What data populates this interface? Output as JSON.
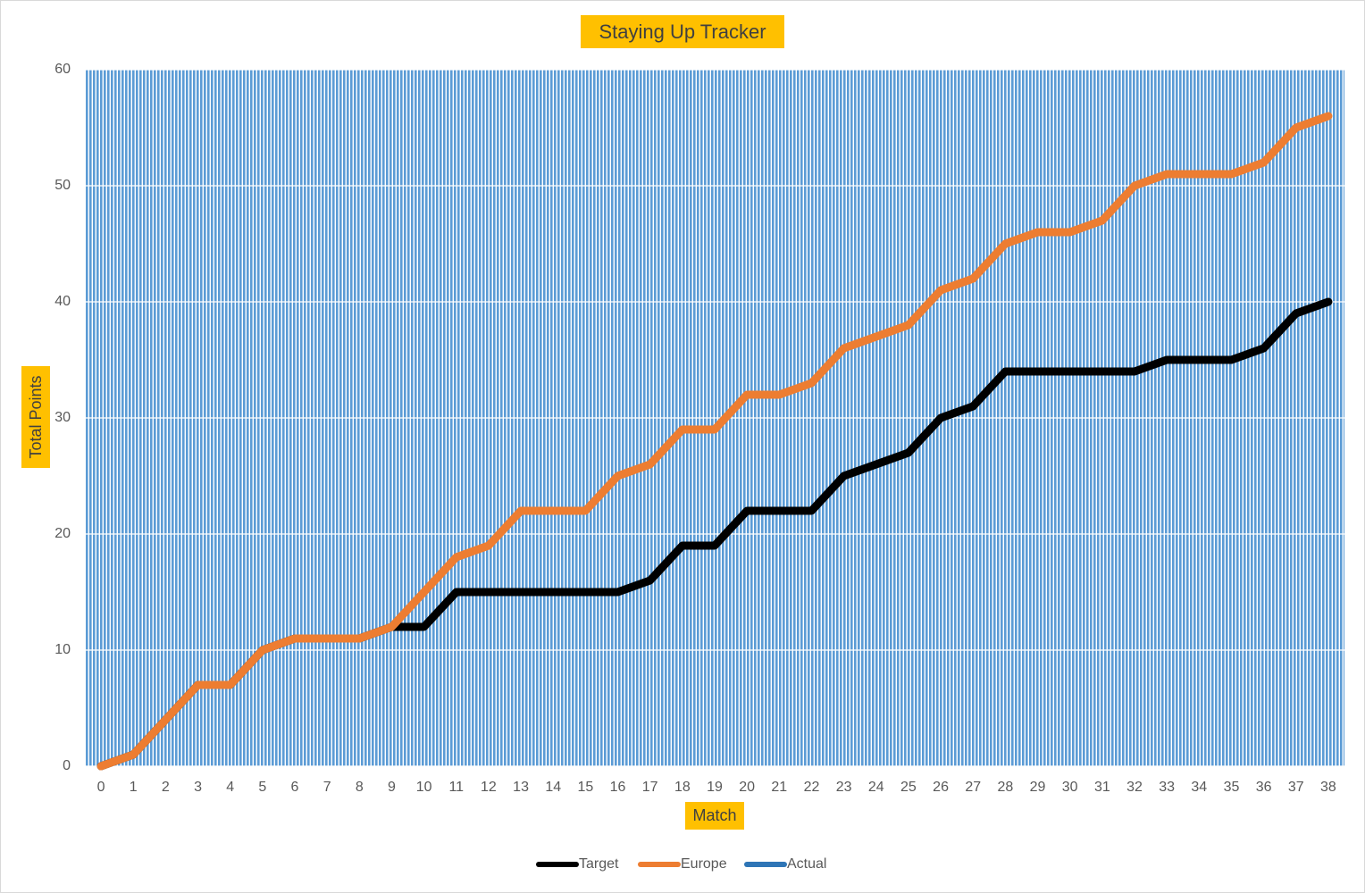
{
  "chart_data": {
    "type": "line",
    "title": "Staying Up Tracker",
    "x_label": "Match",
    "y_label": "Total Points",
    "categories": [
      0,
      1,
      2,
      3,
      4,
      5,
      6,
      7,
      8,
      9,
      10,
      11,
      12,
      13,
      14,
      15,
      16,
      17,
      18,
      19,
      20,
      21,
      22,
      23,
      24,
      25,
      26,
      27,
      28,
      29,
      30,
      31,
      32,
      33,
      34,
      35,
      36,
      37,
      38
    ],
    "series": [
      {
        "name": "Target",
        "color": "#000000",
        "values": [
          0,
          1,
          4,
          7,
          7,
          10,
          11,
          11,
          11,
          12,
          12,
          15,
          15,
          15,
          15,
          15,
          15,
          16,
          19,
          19,
          22,
          22,
          22,
          25,
          26,
          27,
          30,
          31,
          34,
          34,
          34,
          34,
          34,
          35,
          35,
          35,
          36,
          39,
          40
        ]
      },
      {
        "name": "Europe",
        "color": "#ed7d31",
        "values": [
          0,
          1,
          4,
          7,
          7,
          10,
          11,
          11,
          11,
          12,
          15,
          18,
          19,
          22,
          22,
          22,
          25,
          26,
          29,
          29,
          32,
          32,
          33,
          36,
          37,
          38,
          41,
          42,
          45,
          46,
          46,
          47,
          50,
          51,
          51,
          51,
          52,
          55,
          56
        ]
      },
      {
        "name": "Actual",
        "color": "#2e75b6",
        "values": [
          null,
          null,
          null,
          null,
          null,
          null,
          null,
          null,
          null,
          null,
          null,
          null,
          null,
          null,
          null,
          null,
          null,
          null,
          null,
          null,
          null,
          null,
          null,
          null,
          null,
          null,
          null,
          null,
          null,
          null,
          null,
          null,
          null,
          null,
          null,
          null,
          null,
          null,
          null
        ]
      }
    ],
    "ylim": [
      0,
      60
    ],
    "yticks": [
      0,
      10,
      20,
      30,
      40,
      50,
      60
    ],
    "grid": true,
    "legend": "bottom"
  }
}
